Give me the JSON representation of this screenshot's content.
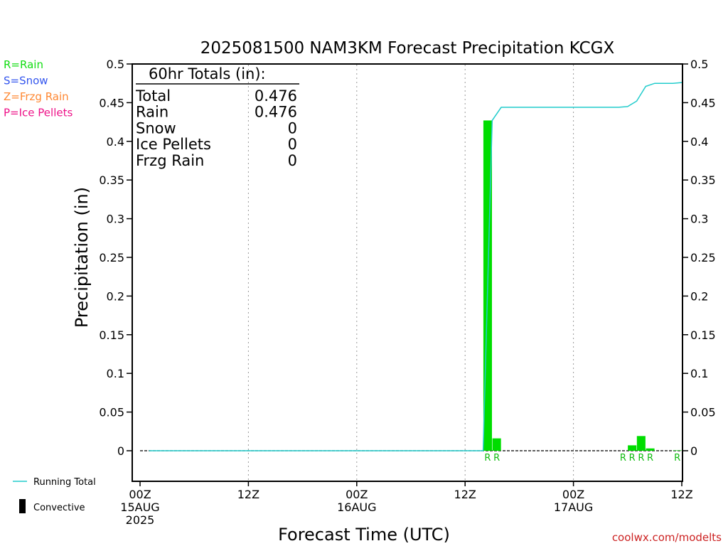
{
  "title": "2025081500 NAM3KM Forecast Precipitation KCGX",
  "legend_types": [
    {
      "text": "R=Rain",
      "color": "#11dd11"
    },
    {
      "text": "S=Snow",
      "color": "#3355ee"
    },
    {
      "text": "Z=Frzg Rain",
      "color": "#ff8833"
    },
    {
      "text": "P=Ice Pellets",
      "color": "#ee1188"
    }
  ],
  "totals": {
    "header": "60hr Totals (in):",
    "rows": [
      {
        "label": "Total",
        "value": "0.476"
      },
      {
        "label": "Rain",
        "value": "0.476"
      },
      {
        "label": "Snow",
        "value": "0"
      },
      {
        "label": "Ice Pellets",
        "value": "0"
      },
      {
        "label": "Frzg Rain",
        "value": "0"
      }
    ]
  },
  "key": {
    "running_total": "Running Total",
    "convective": "Convective"
  },
  "watermark": "coolwx.com/modelts",
  "colors": {
    "bar": "#00dd00",
    "running_total": "#22cccc",
    "watermark": "#cc2222",
    "grid": "#999999"
  },
  "chart_data": {
    "type": "bar",
    "title": "2025081500 NAM3KM Forecast Precipitation KCGX",
    "xlabel": "Forecast Time (UTC)",
    "ylabel": "Precipitation (in)",
    "xlim": [
      0,
      60
    ],
    "ylim": [
      -0.04,
      0.5
    ],
    "y_ticks": [
      0,
      0.05,
      0.1,
      0.15,
      0.2,
      0.25,
      0.3,
      0.35,
      0.4,
      0.45,
      0.5
    ],
    "y_tick_labels": [
      "0",
      "0.05",
      "0.1",
      "0.15",
      "0.2",
      "0.25",
      "0.3",
      "0.35",
      "0.4",
      "0.45",
      "0.5"
    ],
    "x_ticks": [
      {
        "hour": 0,
        "lines": [
          "00Z",
          "15AUG",
          "2025"
        ]
      },
      {
        "hour": 12,
        "lines": [
          "12Z"
        ]
      },
      {
        "hour": 24,
        "lines": [
          "00Z",
          "16AUG"
        ]
      },
      {
        "hour": 36,
        "lines": [
          "12Z"
        ]
      },
      {
        "hour": 48,
        "lines": [
          "00Z",
          "17AUG"
        ]
      },
      {
        "hour": 60,
        "lines": [
          "12Z"
        ]
      }
    ],
    "grid": "vertical dotted",
    "bars": [
      {
        "hour": 39,
        "value": 0.427,
        "type": "R"
      },
      {
        "hour": 40,
        "value": 0.016,
        "type": "R"
      },
      {
        "hour": 55,
        "value": 0.007,
        "type": "R"
      },
      {
        "hour": 56,
        "value": 0.019,
        "type": "R"
      },
      {
        "hour": 57,
        "value": 0.003,
        "type": "R"
      },
      {
        "hour": 60,
        "value": 0.0005,
        "type": "R"
      }
    ],
    "extra_type_labels": [
      {
        "hour": 54,
        "type": "R"
      }
    ],
    "running_total": [
      [
        1,
        0
      ],
      [
        38,
        0
      ],
      [
        39,
        0.427
      ],
      [
        40,
        0.444
      ],
      [
        41,
        0.444
      ],
      [
        52,
        0.444
      ],
      [
        53,
        0.444
      ],
      [
        54,
        0.445
      ],
      [
        55,
        0.452
      ],
      [
        56,
        0.471
      ],
      [
        57,
        0.475
      ],
      [
        58,
        0.475
      ],
      [
        59,
        0.475
      ],
      [
        60,
        0.476
      ]
    ]
  }
}
